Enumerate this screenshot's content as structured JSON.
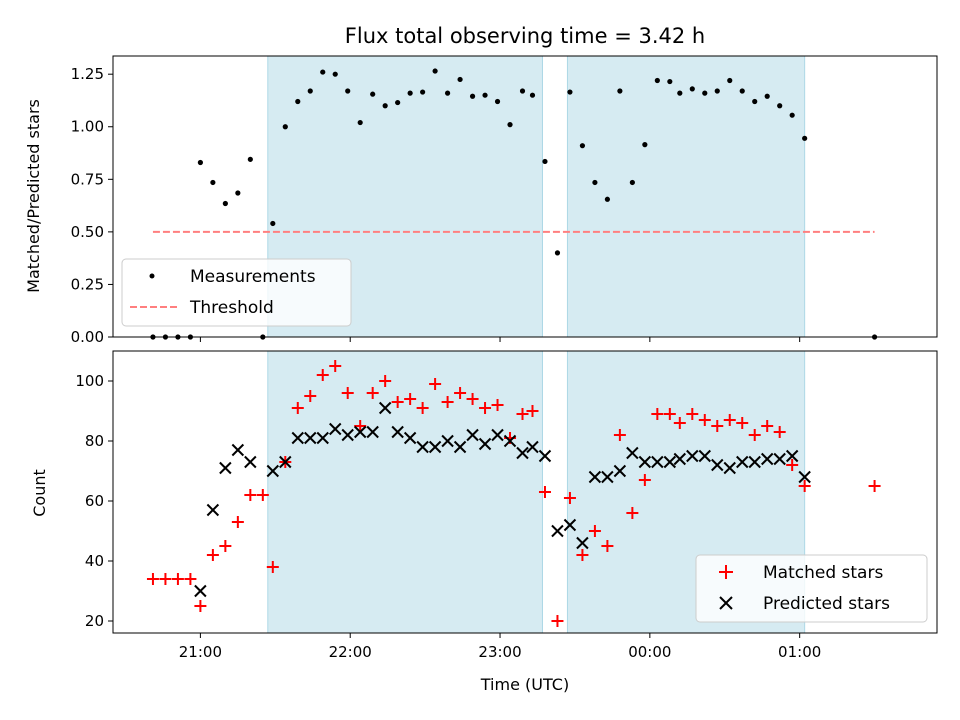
{
  "chart_data": [
    {
      "type": "scatter",
      "title": "Flux total observing time = 3.42 h",
      "ylabel": "Matched/Predicted stars",
      "xlabel": "",
      "x_range": [
        "20:25",
        "01:55"
      ],
      "ylim": [
        0,
        1.3365
      ],
      "yticks": [
        0.0,
        0.25,
        0.5,
        0.75,
        1.0,
        1.25
      ],
      "ytick_labels": [
        "0.00",
        "0.25",
        "0.50",
        "0.75",
        "1.00",
        "1.25"
      ],
      "xticks": [
        "21:00",
        "22:00",
        "23:00",
        "00:00",
        "01:00"
      ],
      "grid": false,
      "legend_position": "lower-left",
      "shaded_intervals": [
        [
          "21:27",
          "23:17"
        ],
        [
          "23:27",
          "01:02"
        ]
      ],
      "shade_color": "#add8e6",
      "series": [
        {
          "name": "Measurements",
          "style": "dot",
          "color": "#000000",
          "x": [
            "20:41",
            "20:46",
            "20:51",
            "20:56",
            "21:00",
            "21:05",
            "21:10",
            "21:15",
            "21:20",
            "21:25",
            "21:29",
            "21:34",
            "21:39",
            "21:44",
            "21:49",
            "21:54",
            "21:59",
            "22:04",
            "22:09",
            "22:14",
            "22:19",
            "22:24",
            "22:29",
            "22:34",
            "22:39",
            "22:44",
            "22:49",
            "22:54",
            "22:59",
            "23:04",
            "23:09",
            "23:13",
            "23:18",
            "23:23",
            "23:28",
            "23:33",
            "23:38",
            "23:43",
            "23:48",
            "23:53",
            "23:58",
            "00:03",
            "00:08",
            "00:12",
            "00:17",
            "00:22",
            "00:27",
            "00:32",
            "00:37",
            "00:42",
            "00:47",
            "00:52",
            "00:57",
            "01:02",
            "01:30"
          ],
          "y": [
            0.0,
            0.0,
            0.0,
            0.0,
            0.83,
            0.735,
            0.635,
            0.685,
            0.845,
            0.0,
            0.54,
            1.0,
            1.12,
            1.17,
            1.26,
            1.25,
            1.17,
            1.02,
            1.155,
            1.1,
            1.115,
            1.16,
            1.165,
            1.265,
            1.16,
            1.225,
            1.145,
            1.15,
            1.12,
            1.01,
            1.17,
            1.15,
            0.835,
            0.4,
            1.165,
            0.91,
            0.735,
            0.655,
            1.17,
            0.735,
            0.915,
            1.22,
            1.215,
            1.16,
            1.18,
            1.16,
            1.17,
            1.22,
            1.17,
            1.12,
            1.145,
            1.1,
            1.055,
            0.945,
            0.0
          ]
        },
        {
          "name": "Threshold",
          "style": "dashed-line",
          "color": "#ff7f7f",
          "x": [
            "20:41",
            "01:30"
          ],
          "y": [
            0.5,
            0.5
          ]
        }
      ]
    },
    {
      "type": "scatter",
      "title": "",
      "ylabel": "Count",
      "xlabel": "Time (UTC)",
      "x_range": [
        "20:25",
        "01:55"
      ],
      "ylim": [
        16,
        110
      ],
      "yticks": [
        20,
        40,
        60,
        80,
        100
      ],
      "ytick_labels": [
        "20",
        "40",
        "60",
        "80",
        "100"
      ],
      "xticks": [
        "21:00",
        "22:00",
        "23:00",
        "00:00",
        "01:00"
      ],
      "xtick_labels": [
        "21:00",
        "22:00",
        "23:00",
        "00:00",
        "01:00"
      ],
      "grid": false,
      "legend_position": "lower-right",
      "shaded_intervals": [
        [
          "21:27",
          "23:17"
        ],
        [
          "23:27",
          "01:02"
        ]
      ],
      "shade_color": "#add8e6",
      "series": [
        {
          "name": "Matched stars",
          "marker": "plus",
          "color": "#ff0000",
          "x": [
            "20:41",
            "20:46",
            "20:51",
            "20:56",
            "21:00",
            "21:05",
            "21:10",
            "21:15",
            "21:20",
            "21:25",
            "21:29",
            "21:34",
            "21:39",
            "21:44",
            "21:49",
            "21:54",
            "21:59",
            "22:04",
            "22:09",
            "22:14",
            "22:19",
            "22:24",
            "22:29",
            "22:34",
            "22:39",
            "22:44",
            "22:49",
            "22:54",
            "22:59",
            "23:04",
            "23:09",
            "23:13",
            "23:18",
            "23:23",
            "23:28",
            "23:33",
            "23:38",
            "23:43",
            "23:48",
            "23:53",
            "23:58",
            "00:03",
            "00:08",
            "00:12",
            "00:17",
            "00:22",
            "00:27",
            "00:32",
            "00:37",
            "00:42",
            "00:47",
            "00:52",
            "00:57",
            "01:02",
            "01:30"
          ],
          "y": [
            34,
            34,
            34,
            34,
            25,
            42,
            45,
            53,
            62,
            62,
            38,
            73,
            91,
            95,
            102,
            105,
            96,
            85,
            96,
            100,
            93,
            94,
            91,
            99,
            93,
            96,
            94,
            91,
            92,
            81,
            89,
            90,
            63,
            20,
            61,
            42,
            50,
            45,
            82,
            56,
            67,
            89,
            89,
            86,
            89,
            87,
            85,
            87,
            86,
            82,
            85,
            83,
            72,
            65,
            65
          ]
        },
        {
          "name": "Predicted stars",
          "marker": "x",
          "color": "#000000",
          "x": [
            "21:00",
            "21:05",
            "21:10",
            "21:15",
            "21:20",
            "21:29",
            "21:34",
            "21:39",
            "21:44",
            "21:49",
            "21:54",
            "21:59",
            "22:04",
            "22:09",
            "22:14",
            "22:19",
            "22:24",
            "22:29",
            "22:34",
            "22:39",
            "22:44",
            "22:49",
            "22:54",
            "22:59",
            "23:04",
            "23:09",
            "23:13",
            "23:18",
            "23:23",
            "23:28",
            "23:33",
            "23:38",
            "23:43",
            "23:48",
            "23:53",
            "23:58",
            "00:03",
            "00:08",
            "00:12",
            "00:17",
            "00:22",
            "00:27",
            "00:32",
            "00:37",
            "00:42",
            "00:47",
            "00:52",
            "00:57",
            "01:02"
          ],
          "y": [
            30,
            57,
            71,
            77,
            73,
            70,
            73,
            81,
            81,
            81,
            84,
            82,
            83,
            83,
            91,
            83,
            81,
            78,
            78,
            80,
            78,
            82,
            79,
            82,
            80,
            76,
            78,
            75,
            50,
            52,
            46,
            68,
            68,
            70,
            76,
            73,
            73,
            73,
            74,
            75,
            75,
            72,
            71,
            73,
            73,
            74,
            74,
            75,
            68
          ]
        }
      ]
    }
  ]
}
